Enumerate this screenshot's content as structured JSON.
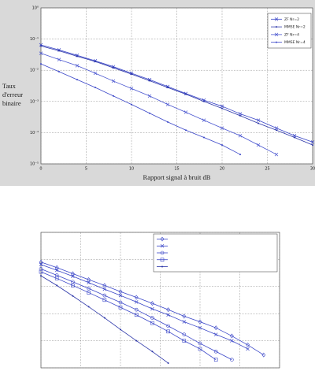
{
  "chart_data": [
    {
      "type": "line",
      "log_y": true,
      "grid": true,
      "show_tick_labels": true,
      "legend": "upper right",
      "xlabel": "Rapport signal à bruit dB",
      "ylabel": "Taux d'erreur binaire",
      "x": [
        0,
        2,
        4,
        6,
        8,
        10,
        12,
        14,
        16,
        18,
        20,
        22,
        24,
        26,
        28,
        30
      ],
      "xlim": [
        0,
        30
      ],
      "xticks": [
        0,
        5,
        10,
        15,
        20,
        25,
        30
      ],
      "ylim": [
        1e-05,
        1
      ],
      "yticks": [
        {
          "value": 1,
          "label": "10⁰"
        },
        {
          "value": 0.1,
          "label": "10⁻¹"
        },
        {
          "value": 0.01,
          "label": "10⁻²"
        },
        {
          "value": 0.001,
          "label": "10⁻³"
        },
        {
          "value": 0.0001,
          "label": "10⁻⁴"
        },
        {
          "value": 1e-05,
          "label": "10⁻⁵"
        }
      ],
      "series": [
        {
          "name": "ZF Nr=2",
          "color": "#3a46c8",
          "marker": "x",
          "values": [
            0.065,
            0.045,
            0.03,
            0.02,
            0.013,
            0.008,
            0.005,
            0.003,
            0.0018,
            0.0011,
            0.0007,
            0.0004,
            0.00025,
            0.00014,
            8e-05,
            5e-05
          ]
        },
        {
          "name": "MMSE Nr=2",
          "color": "#2a34a8",
          "marker": "dot",
          "values": [
            0.06,
            0.042,
            0.028,
            0.019,
            0.012,
            0.0075,
            0.0046,
            0.0028,
            0.0017,
            0.001,
            0.0006,
            0.00035,
            0.0002,
            0.00012,
            7e-05,
            4e-05
          ]
        },
        {
          "name": "ZF Nr=4",
          "color": "#4a56d0",
          "marker": "x",
          "values": [
            0.035,
            0.022,
            0.014,
            0.008,
            0.0045,
            0.0026,
            0.0015,
            0.0008,
            0.00045,
            0.00025,
            0.00014,
            8e-05,
            4e-05,
            2e-05,
            null,
            null
          ]
        },
        {
          "name": "MMSE Nr=4",
          "color": "#3a46c8",
          "marker": "dot",
          "values": [
            0.016,
            0.009,
            0.005,
            0.0028,
            0.0015,
            0.0008,
            0.00042,
            0.00022,
            0.00012,
            7e-05,
            4e-05,
            2e-05,
            null,
            null,
            null,
            null
          ]
        }
      ]
    },
    {
      "type": "line",
      "log_y": true,
      "grid": true,
      "show_tick_labels": false,
      "legend": "upper right",
      "x": [
        0,
        2,
        4,
        6,
        8,
        10,
        12,
        14,
        16,
        18,
        20,
        22,
        24,
        26,
        28
      ],
      "xlim": [
        0,
        30
      ],
      "xticks": [
        0,
        5,
        10,
        15,
        20,
        25,
        30
      ],
      "ylim": [
        1e-05,
        1
      ],
      "yticks": [
        1,
        0.1,
        0.01,
        0.001,
        0.0001,
        1e-05
      ],
      "series": [
        {
          "color": "#3a46c8",
          "marker": "diamond",
          "values": [
            0.08,
            0.05,
            0.03,
            0.018,
            0.011,
            0.0065,
            0.004,
            0.0024,
            0.0014,
            0.0008,
            0.0005,
            0.0003,
            0.00015,
            7e-05,
            3e-05
          ]
        },
        {
          "color": "#3a46c8",
          "marker": "x",
          "values": [
            0.065,
            0.04,
            0.024,
            0.014,
            0.008,
            0.0047,
            0.0027,
            0.0015,
            0.0009,
            0.0005,
            0.0003,
            0.00017,
            0.0001,
            5e-05,
            null
          ]
        },
        {
          "color": "#3a46c8",
          "marker": "circle",
          "values": [
            0.045,
            0.026,
            0.015,
            0.0085,
            0.0047,
            0.0026,
            0.0014,
            0.0007,
            0.00035,
            0.00017,
            8e-05,
            4e-05,
            2e-05,
            null,
            null
          ]
        },
        {
          "color": "#3a46c8",
          "marker": "square",
          "values": [
            0.035,
            0.02,
            0.011,
            0.006,
            0.0032,
            0.0017,
            0.0009,
            0.00045,
            0.00022,
            0.0001,
            5e-05,
            2e-05,
            null,
            null,
            null
          ]
        },
        {
          "color": "#2a34a8",
          "marker": "dot",
          "values": [
            0.025,
            0.011,
            0.0045,
            0.0018,
            0.0007,
            0.00026,
            0.0001,
            4e-05,
            1.5e-05,
            null,
            null,
            null,
            null,
            null,
            null
          ]
        }
      ]
    }
  ]
}
